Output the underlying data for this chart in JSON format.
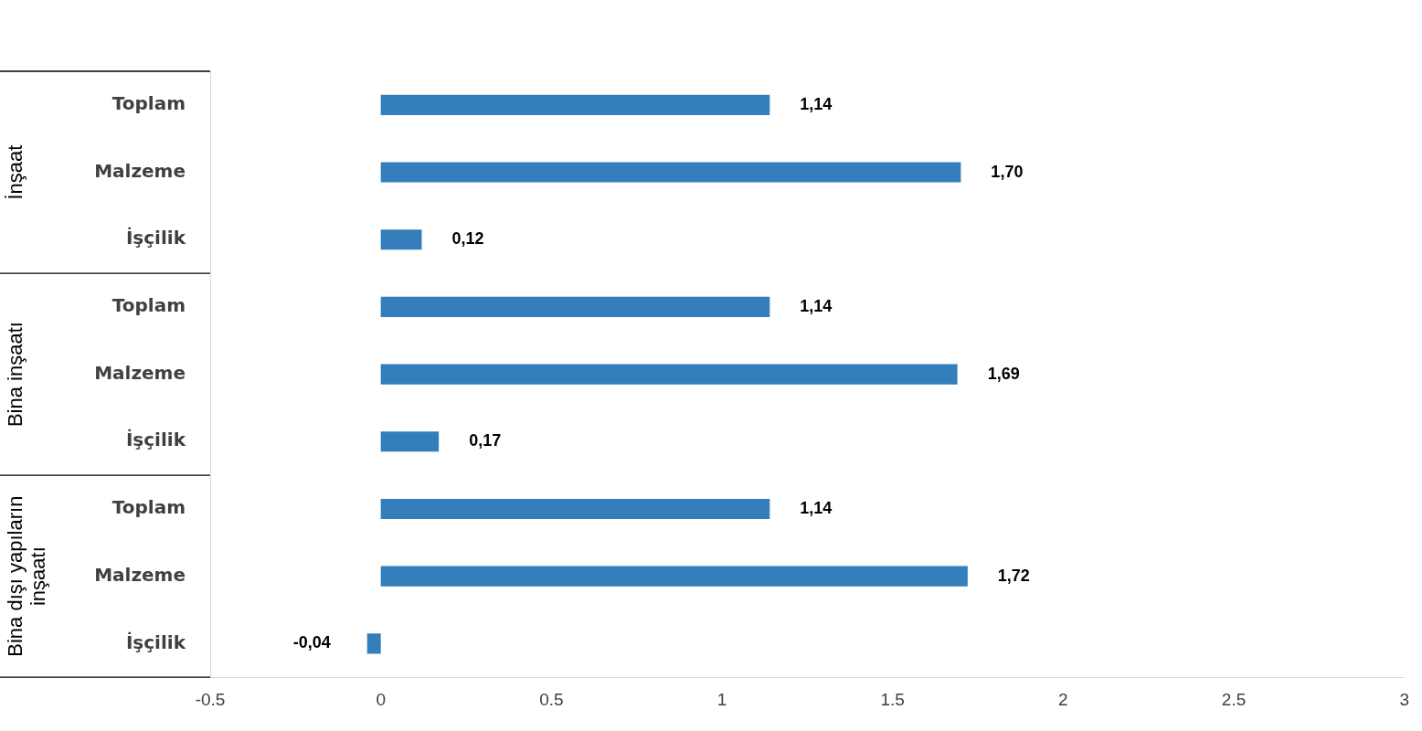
{
  "chart_data": {
    "type": "bar",
    "orientation": "horizontal",
    "categories": [
      "Toplam",
      "Malzeme",
      "İşçilik",
      "Toplam",
      "Malzeme",
      "İşçilik",
      "Toplam",
      "Malzeme",
      "İşçilik"
    ],
    "values": [
      1.14,
      1.7,
      0.12,
      1.14,
      1.69,
      0.17,
      1.14,
      1.72,
      -0.04
    ],
    "value_labels": [
      "1,14",
      "1,70",
      "0,12",
      "1,14",
      "1,69",
      "0,17",
      "1,14",
      "1,72",
      "-0,04"
    ],
    "color": "#337ebb",
    "xlim": [
      -0.5,
      3
    ],
    "xticks": [
      -0.5,
      0,
      0.5,
      1,
      1.5,
      2,
      2.5,
      3
    ],
    "annotations": [
      "İnşaat",
      "Bina inşaatı",
      "Bina dışı yapıların inşaatı"
    ],
    "grid": false,
    "legend": false
  }
}
